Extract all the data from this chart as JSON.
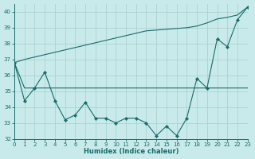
{
  "x": [
    0,
    1,
    2,
    3,
    4,
    5,
    6,
    7,
    8,
    9,
    10,
    11,
    12,
    13,
    14,
    15,
    16,
    17,
    18,
    19,
    20,
    21,
    22,
    23
  ],
  "y_main": [
    36.8,
    34.4,
    35.2,
    36.2,
    34.4,
    33.2,
    33.5,
    34.3,
    33.3,
    33.3,
    33.0,
    33.3,
    33.3,
    33.0,
    32.2,
    32.8,
    32.2,
    33.3,
    35.8,
    35.2,
    38.3,
    37.8,
    39.5,
    40.3
  ],
  "y_upper": [
    36.8,
    37.0,
    37.15,
    37.3,
    37.45,
    37.6,
    37.75,
    37.9,
    38.05,
    38.2,
    38.35,
    38.5,
    38.65,
    38.8,
    38.85,
    38.9,
    38.95,
    39.0,
    39.1,
    39.3,
    39.55,
    39.65,
    39.8,
    40.3
  ],
  "y_lower": [
    36.8,
    35.2,
    35.2,
    35.2,
    35.2,
    35.2,
    35.2,
    35.2,
    35.2,
    35.2,
    35.2,
    35.2,
    35.2,
    35.2,
    35.2,
    35.2,
    35.2,
    35.2,
    35.2,
    35.2,
    35.2,
    35.2,
    35.2,
    35.2
  ],
  "xlim": [
    0,
    23
  ],
  "ylim": [
    32,
    40.5
  ],
  "yticks": [
    32,
    33,
    34,
    35,
    36,
    37,
    38,
    39,
    40
  ],
  "xticks": [
    0,
    1,
    2,
    3,
    4,
    5,
    6,
    7,
    8,
    9,
    10,
    11,
    12,
    13,
    14,
    15,
    16,
    17,
    18,
    19,
    20,
    21,
    22,
    23
  ],
  "xlabel": "Humidex (Indice chaleur)",
  "line_color": "#1a6b6b",
  "bg_color": "#c8eaea",
  "grid_color": "#a8cccc"
}
